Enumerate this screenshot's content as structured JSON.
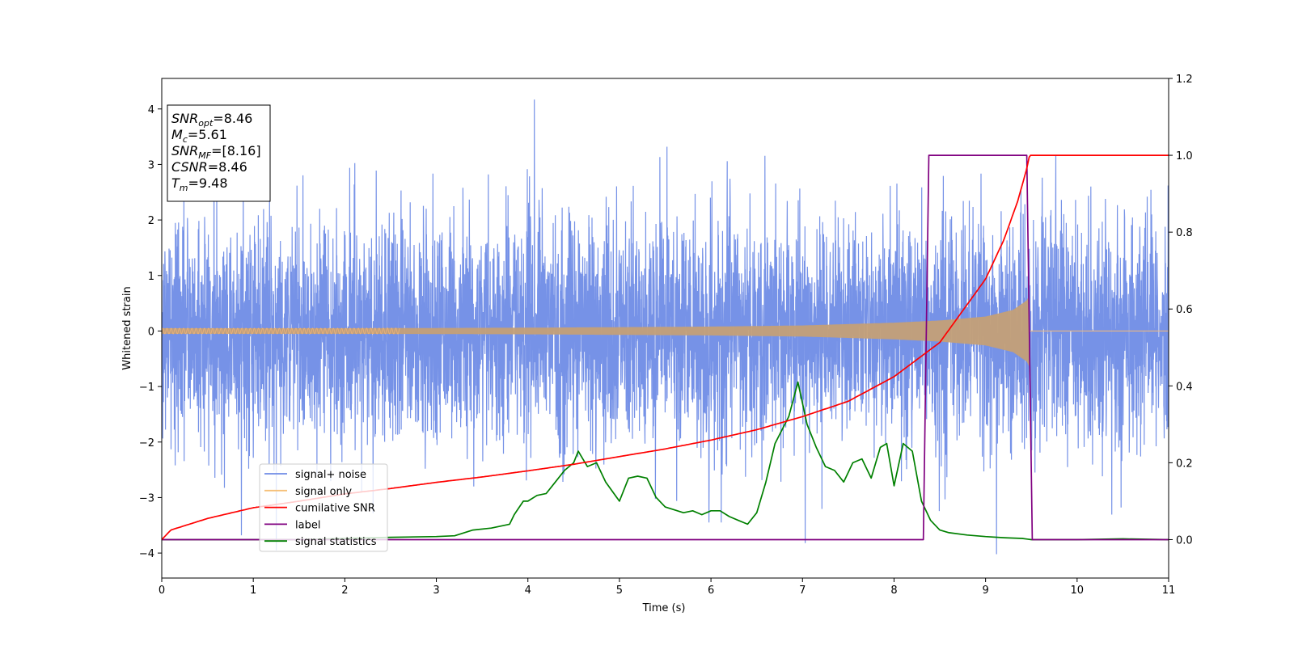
{
  "chart_data": {
    "type": "line",
    "title": "",
    "xlabel": "Time (s)",
    "ylabel": "Whitened strain",
    "y2label": "",
    "xlim": [
      0,
      11
    ],
    "ylim": [
      -4.45,
      4.55
    ],
    "y2lim": [
      -0.1,
      1.2
    ],
    "xticks": [
      0,
      1,
      2,
      3,
      4,
      5,
      6,
      7,
      8,
      9,
      10,
      11
    ],
    "yticks": [
      -4,
      -3,
      -2,
      -1,
      0,
      1,
      2,
      3,
      4
    ],
    "y2ticks": [
      0.0,
      0.2,
      0.4,
      0.6,
      0.8,
      1.0,
      1.2
    ],
    "xtick_labels": [
      "0",
      "1",
      "2",
      "3",
      "4",
      "5",
      "6",
      "7",
      "8",
      "9",
      "10",
      "11"
    ],
    "ytick_labels": [
      "−4",
      "−3",
      "−2",
      "−1",
      "0",
      "1",
      "2",
      "3",
      "4"
    ],
    "y2tick_labels": [
      "0.0",
      "0.2",
      "0.4",
      "0.6",
      "0.8",
      "1.0",
      "1.2"
    ],
    "grid": false,
    "legend_position": "lower-left",
    "series": [
      {
        "name": "signal+ noise",
        "axis": "left",
        "color": "#6f8ce6",
        "style": "dense gaussian noise, approx. sigma 1, extremes about ±4",
        "notable_points": {
          "x": [
            4.07,
            9.12,
            7.03,
            0.87,
            1.25
          ],
          "y": [
            4.17,
            -4.02,
            -3.82,
            -3.68,
            -3.95
          ]
        }
      },
      {
        "name": "signal only",
        "axis": "left",
        "color": "#c4a077",
        "style": "chirp with growing amplitude ending at merger",
        "envelope": {
          "x": [
            0,
            2,
            4,
            6,
            7,
            8,
            8.5,
            9.0,
            9.3,
            9.45,
            9.48
          ],
          "amp": [
            0.05,
            0.05,
            0.06,
            0.08,
            0.1,
            0.15,
            0.19,
            0.26,
            0.38,
            0.55,
            0.65
          ]
        }
      },
      {
        "name": "cumilative SNR",
        "axis": "right",
        "color": "#ff0000",
        "x": [
          0,
          0.1,
          0.5,
          1,
          1.5,
          2,
          2.5,
          3,
          3.5,
          4,
          4.5,
          5,
          5.5,
          6,
          6.5,
          7,
          7.5,
          8,
          8.5,
          9,
          9.2,
          9.35,
          9.45,
          9.48,
          11
        ],
        "y": [
          0.0,
          0.025,
          0.055,
          0.083,
          0.1,
          0.119,
          0.133,
          0.149,
          0.163,
          0.179,
          0.196,
          0.216,
          0.236,
          0.259,
          0.286,
          0.32,
          0.36,
          0.424,
          0.513,
          0.678,
          0.78,
          0.88,
          0.965,
          1.0,
          1.0
        ]
      },
      {
        "name": "label",
        "axis": "right",
        "color": "#800080",
        "x": [
          0,
          8.32,
          8.38,
          9.45,
          9.51,
          11
        ],
        "y": [
          0,
          0,
          1,
          1,
          0,
          0
        ]
      },
      {
        "name": "signal statistics",
        "axis": "right",
        "color": "#008000",
        "x": [
          0,
          0.5,
          1,
          1.5,
          2,
          2.5,
          3,
          3.2,
          3.4,
          3.6,
          3.8,
          3.85,
          3.95,
          4.0,
          4.1,
          4.2,
          4.3,
          4.4,
          4.5,
          4.55,
          4.6,
          4.65,
          4.75,
          4.85,
          5.0,
          5.1,
          5.2,
          5.3,
          5.4,
          5.5,
          5.7,
          5.8,
          5.9,
          6.0,
          6.1,
          6.2,
          6.3,
          6.4,
          6.5,
          6.6,
          6.7,
          6.85,
          6.95,
          7.05,
          7.15,
          7.25,
          7.35,
          7.45,
          7.55,
          7.65,
          7.75,
          7.85,
          7.92,
          8.0,
          8.1,
          8.2,
          8.3,
          8.4,
          8.5,
          8.6,
          8.8,
          9.0,
          9.2,
          9.4,
          9.5,
          10,
          10.5,
          11
        ],
        "y": [
          0.0,
          0.0,
          0.0,
          0.0,
          0.003,
          0.006,
          0.008,
          0.01,
          0.025,
          0.03,
          0.04,
          0.065,
          0.1,
          0.1,
          0.115,
          0.12,
          0.15,
          0.18,
          0.2,
          0.23,
          0.21,
          0.19,
          0.2,
          0.15,
          0.1,
          0.16,
          0.165,
          0.16,
          0.11,
          0.085,
          0.07,
          0.075,
          0.065,
          0.075,
          0.075,
          0.06,
          0.05,
          0.04,
          0.07,
          0.15,
          0.25,
          0.32,
          0.41,
          0.3,
          0.24,
          0.19,
          0.18,
          0.15,
          0.2,
          0.21,
          0.16,
          0.24,
          0.25,
          0.14,
          0.25,
          0.23,
          0.1,
          0.05,
          0.025,
          0.018,
          0.012,
          0.008,
          0.005,
          0.003,
          0.0,
          0.0,
          0.002,
          0.0
        ]
      }
    ],
    "annotation": {
      "lines": [
        {
          "symbol": "SNR",
          "sub": "opt",
          "text": "=8.46"
        },
        {
          "symbol": "M",
          "sub": "c",
          "text": "=5.61"
        },
        {
          "symbol": "SNR",
          "sub": "MF",
          "text": "=[8.16]"
        },
        {
          "symbol": "CSNR",
          "sub": "",
          "text": "=8.46"
        },
        {
          "symbol": "T",
          "sub": "m",
          "text": "=9.48"
        }
      ]
    },
    "legend": [
      {
        "label": "signal+ noise",
        "color": "#6f8ce6"
      },
      {
        "label": "signal only",
        "color": "#f5c078"
      },
      {
        "label": "cumilative SNR",
        "color": "#ff0000"
      },
      {
        "label": "label",
        "color": "#800080"
      },
      {
        "label": "signal statistics",
        "color": "#008000"
      }
    ]
  }
}
